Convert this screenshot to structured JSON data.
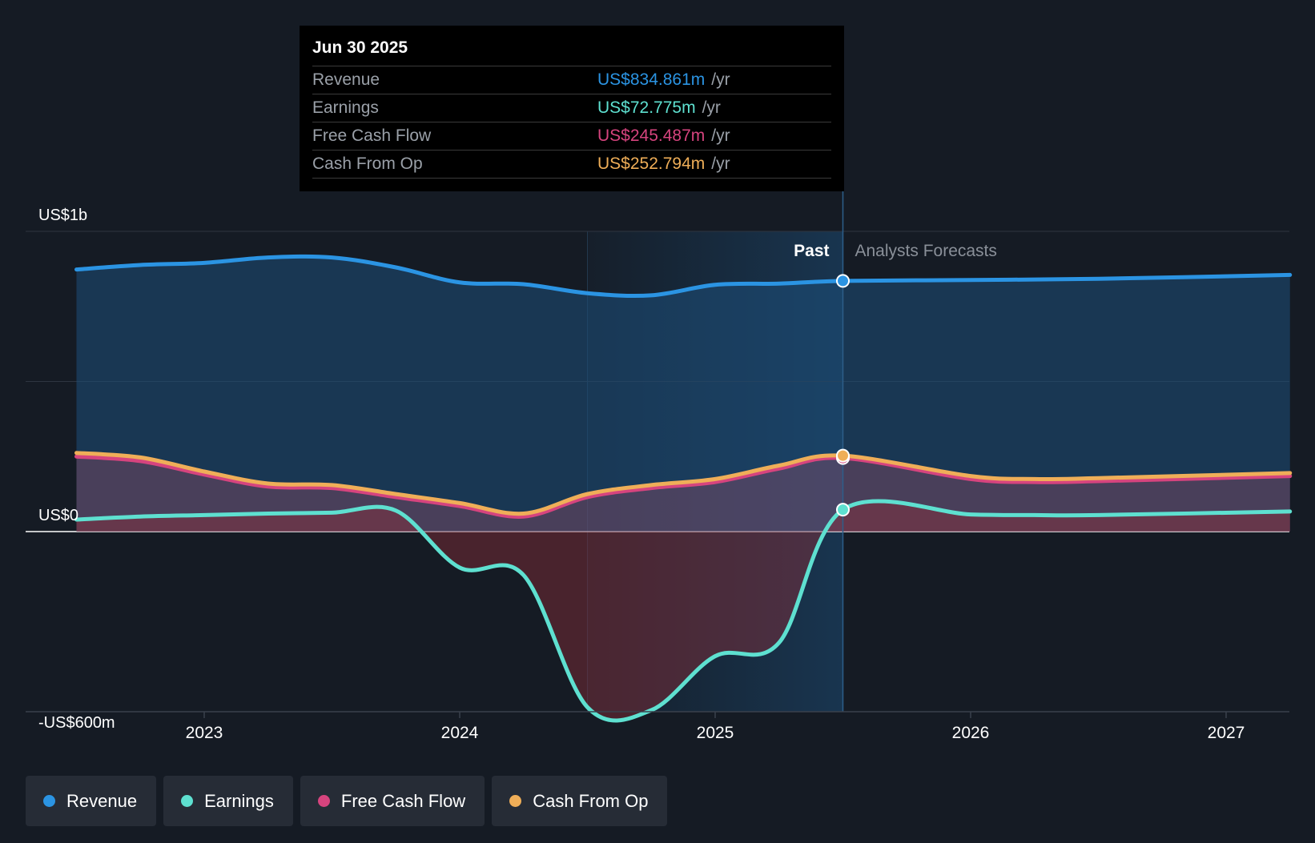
{
  "tooltip": {
    "date": "Jun 30 2025",
    "rows": [
      {
        "label": "Revenue",
        "value": "US$834.861m",
        "unit": "/yr",
        "color": "#2b94e3"
      },
      {
        "label": "Earnings",
        "value": "US$72.775m",
        "unit": "/yr",
        "color": "#5ee0d0"
      },
      {
        "label": "Free Cash Flow",
        "value": "US$245.487m",
        "unit": "/yr",
        "color": "#d6447e"
      },
      {
        "label": "Cash From Op",
        "value": "US$252.794m",
        "unit": "/yr",
        "color": "#efae58"
      }
    ]
  },
  "labels": {
    "past": "Past",
    "forecast": "Analysts Forecasts"
  },
  "legend": [
    {
      "label": "Revenue",
      "color": "#2b94e3"
    },
    {
      "label": "Earnings",
      "color": "#5ee0d0"
    },
    {
      "label": "Free Cash Flow",
      "color": "#d6447e"
    },
    {
      "label": "Cash From Op",
      "color": "#efae58"
    }
  ],
  "chart_data": {
    "type": "line",
    "ylim": [
      -600,
      1000
    ],
    "y_unit": "US$m",
    "y_ticks": [
      {
        "value": 1000,
        "label": "US$1b"
      },
      {
        "value": 500,
        "label": ""
      },
      {
        "value": 0,
        "label": "US$0"
      },
      {
        "value": -600,
        "label": "-US$600m"
      }
    ],
    "x_range": [
      2022.5,
      2027.25
    ],
    "x_ticks": [
      {
        "value": 2023,
        "label": "2023"
      },
      {
        "value": 2024,
        "label": "2024"
      },
      {
        "value": 2025,
        "label": "2025"
      },
      {
        "value": 2026,
        "label": "2026"
      },
      {
        "value": 2027,
        "label": "2027"
      }
    ],
    "past_end": 2025.5,
    "highlight_start": 2024.5,
    "series": [
      {
        "name": "Revenue",
        "color": "#2b94e3",
        "fill": true,
        "points": [
          [
            2022.5,
            873
          ],
          [
            2022.75,
            888
          ],
          [
            2023.0,
            895
          ],
          [
            2023.25,
            913
          ],
          [
            2023.5,
            913
          ],
          [
            2023.75,
            880
          ],
          [
            2024.0,
            830
          ],
          [
            2024.25,
            824
          ],
          [
            2024.5,
            794
          ],
          [
            2024.75,
            787
          ],
          [
            2025.0,
            822
          ],
          [
            2025.25,
            826
          ],
          [
            2025.5,
            835
          ]
        ],
        "forecast": [
          [
            2025.5,
            835
          ],
          [
            2026.0,
            838
          ],
          [
            2026.5,
            842
          ],
          [
            2027.25,
            855
          ]
        ]
      },
      {
        "name": "Earnings",
        "color": "#5ee0d0",
        "fill": true,
        "points": [
          [
            2022.5,
            40
          ],
          [
            2022.75,
            50
          ],
          [
            2023.0,
            55
          ],
          [
            2023.25,
            60
          ],
          [
            2023.5,
            63
          ],
          [
            2023.75,
            70
          ],
          [
            2024.0,
            -120
          ],
          [
            2024.25,
            -145
          ],
          [
            2024.5,
            -585
          ],
          [
            2024.75,
            -595
          ],
          [
            2025.0,
            -415
          ],
          [
            2025.25,
            -370
          ],
          [
            2025.5,
            73
          ]
        ],
        "forecast": [
          [
            2025.5,
            73
          ],
          [
            2026.0,
            57
          ],
          [
            2026.25,
            55
          ],
          [
            2026.5,
            55
          ],
          [
            2027.25,
            67
          ]
        ]
      },
      {
        "name": "Free Cash Flow",
        "color": "#d6447e",
        "fill": true,
        "points": [
          [
            2022.5,
            250
          ],
          [
            2022.75,
            235
          ],
          [
            2023.0,
            190
          ],
          [
            2023.25,
            150
          ],
          [
            2023.5,
            145
          ],
          [
            2023.75,
            115
          ],
          [
            2024.0,
            85
          ],
          [
            2024.25,
            50
          ],
          [
            2024.5,
            115
          ],
          [
            2024.75,
            145
          ],
          [
            2025.0,
            165
          ],
          [
            2025.25,
            210
          ],
          [
            2025.5,
            245
          ]
        ],
        "forecast": [
          [
            2025.5,
            245
          ],
          [
            2026.0,
            175
          ],
          [
            2026.25,
            165
          ],
          [
            2026.5,
            168
          ],
          [
            2027.25,
            185
          ]
        ]
      },
      {
        "name": "Cash From Op",
        "color": "#efae58",
        "fill": false,
        "points": [
          [
            2022.5,
            262
          ],
          [
            2022.75,
            247
          ],
          [
            2023.0,
            200
          ],
          [
            2023.25,
            160
          ],
          [
            2023.5,
            155
          ],
          [
            2023.75,
            125
          ],
          [
            2024.0,
            95
          ],
          [
            2024.25,
            60
          ],
          [
            2024.5,
            125
          ],
          [
            2024.75,
            155
          ],
          [
            2025.0,
            175
          ],
          [
            2025.25,
            220
          ],
          [
            2025.5,
            253
          ]
        ],
        "forecast": [
          [
            2025.5,
            253
          ],
          [
            2026.0,
            185
          ],
          [
            2026.25,
            175
          ],
          [
            2026.5,
            178
          ],
          [
            2027.25,
            195
          ]
        ]
      }
    ]
  }
}
